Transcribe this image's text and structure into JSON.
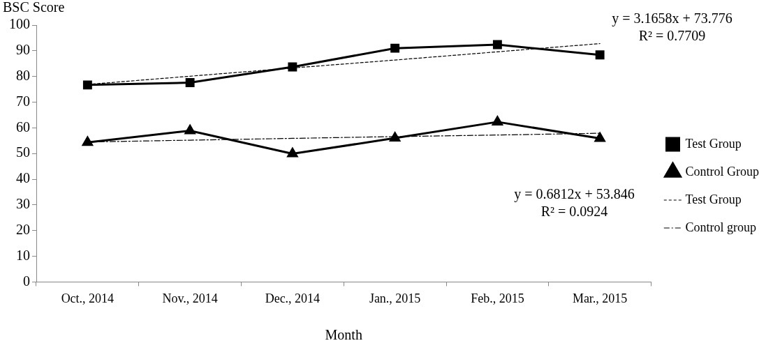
{
  "chart_data": {
    "type": "line",
    "xlabel": "Month",
    "ylabel": "BSC Score",
    "categories": [
      "Oct., 2014",
      "Nov., 2014",
      "Dec., 2014",
      "Jan., 2015",
      "Feb., 2015",
      "Mar., 2015"
    ],
    "series": [
      {
        "name": "Test Group",
        "color": "#000000",
        "marker": "square",
        "line_style": "solid",
        "values": [
          76.7,
          77.6,
          83.7,
          91.0,
          92.4,
          88.4
        ]
      },
      {
        "name": "Control Group",
        "color": "#000000",
        "marker": "triangle",
        "line_style": "solid",
        "values": [
          54.3,
          58.9,
          49.9,
          56.0,
          62.3,
          55.9
        ]
      },
      {
        "name": "Test Group",
        "color": "#000000",
        "marker": "none",
        "line_style": "dashed",
        "values": [
          76.9,
          80.1,
          83.3,
          86.4,
          89.6,
          92.8
        ]
      },
      {
        "name": "Control group",
        "color": "#000000",
        "marker": "none",
        "line_style": "dashdot",
        "values": [
          54.5,
          55.2,
          55.9,
          56.6,
          57.2,
          57.9
        ]
      }
    ],
    "ylim": [
      0,
      100
    ],
    "yticks": [
      0,
      10,
      20,
      30,
      40,
      50,
      60,
      70,
      80,
      90,
      100
    ],
    "grid": false,
    "legend": "right",
    "annotations": [
      "y = 3.1658x + 73.776\nR² = 0.7709",
      "y = 0.6812x + 53.846\nR² = 0.0924"
    ]
  }
}
